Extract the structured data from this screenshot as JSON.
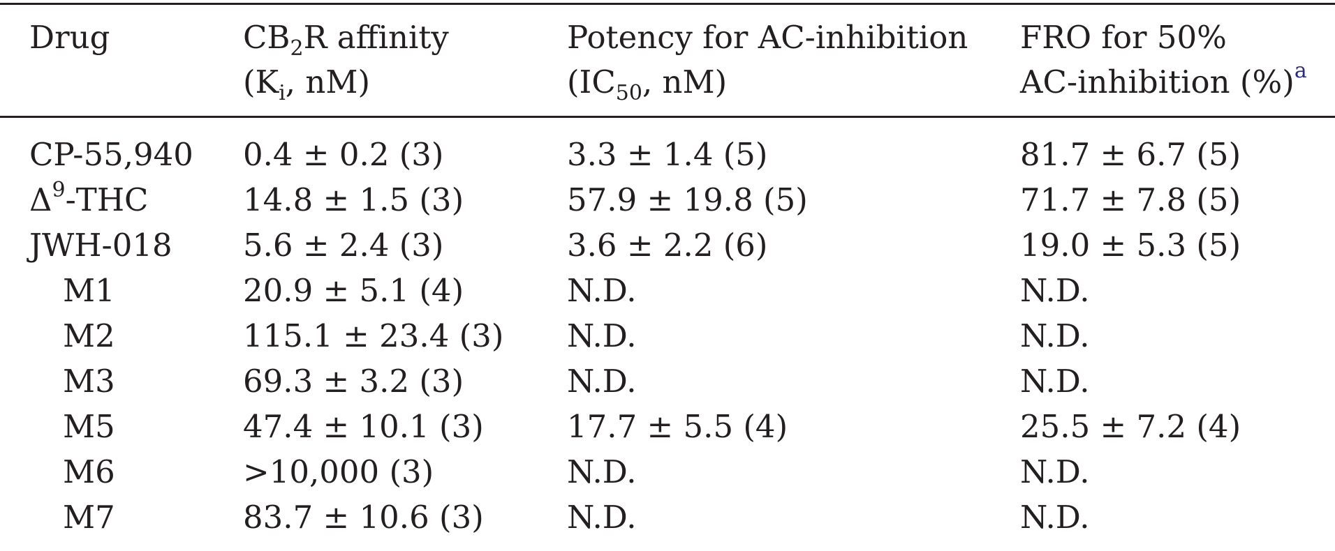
{
  "header": {
    "drug": "Drug",
    "affinity_line1_prefix": "CB",
    "affinity_line1_sub": "2",
    "affinity_line1_suffix": "R affinity",
    "affinity_line2_prefix": "(K",
    "affinity_line2_sub": "i",
    "affinity_line2_suffix": ", nM)",
    "potency_line1": "Potency for AC-inhibition",
    "potency_line2_prefix": "(IC",
    "potency_line2_sub": "50",
    "potency_line2_suffix": ", nM)",
    "fro_line1": "FRO for 50%",
    "fro_line2": "AC-inhibition (%)",
    "fro_note": "a"
  },
  "rows": [
    {
      "drug": "CP-55,940",
      "affinity": "0.4 ± 0.2 (3)",
      "potency": "3.3 ± 1.4 (5)",
      "fro": "81.7 ± 6.7 (5)",
      "indent": false
    },
    {
      "drug_prefix": "Δ",
      "drug_sup": "9",
      "drug_suffix": "-THC",
      "affinity": "14.8 ± 1.5 (3)",
      "potency": "57.9 ± 19.8 (5)",
      "fro": "71.7 ± 7.8 (5)",
      "indent": false
    },
    {
      "drug": "JWH-018",
      "affinity": "5.6 ± 2.4 (3)",
      "potency": "3.6 ± 2.2 (6)",
      "fro": "19.0 ± 5.3 (5)",
      "indent": false
    },
    {
      "drug": "M1",
      "affinity": "20.9 ± 5.1 (4)",
      "potency": "N.D.",
      "fro": "N.D.",
      "indent": true
    },
    {
      "drug": "M2",
      "affinity": "115.1 ± 23.4 (3)",
      "potency": "N.D.",
      "fro": "N.D.",
      "indent": true
    },
    {
      "drug": "M3",
      "affinity": "69.3 ± 3.2 (3)",
      "potency": "N.D.",
      "fro": "N.D.",
      "indent": true
    },
    {
      "drug": "M5",
      "affinity": "47.4 ± 10.1 (3)",
      "potency": "17.7 ± 5.5 (4)",
      "fro": "25.5 ± 7.2 (4)",
      "indent": true
    },
    {
      "drug": "M6",
      "affinity": ">10,000 (3)",
      "potency": "N.D.",
      "fro": "N.D.",
      "indent": true
    },
    {
      "drug": "M7",
      "affinity": "83.7 ± 10.6 (3)",
      "potency": "N.D.",
      "fro": "N.D.",
      "indent": true
    }
  ]
}
